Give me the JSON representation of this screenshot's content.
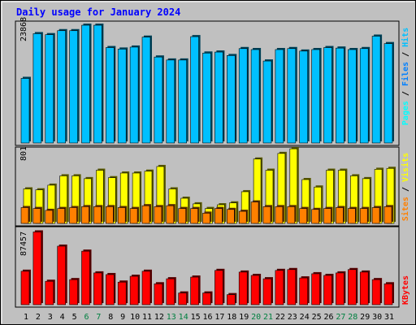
{
  "title": "Daily usage for January 2024",
  "colors": {
    "hits": "#00c0ff",
    "files": "#0080ff",
    "pages": "#00ffff",
    "sites": "#ff8000",
    "visits": "#ffff00",
    "kbytes": "#ff0000",
    "weekend_label": "#008040",
    "weekday_label": "#000000",
    "title": "#0000ff",
    "panel_bg": "#c0c0c0"
  },
  "chart_data": {
    "type": "bar",
    "title": "Daily usage for January 2024",
    "x": [
      "1",
      "2",
      "3",
      "4",
      "5",
      "6",
      "7",
      "8",
      "9",
      "10",
      "11",
      "12",
      "13",
      "14",
      "15",
      "16",
      "17",
      "18",
      "19",
      "20",
      "21",
      "22",
      "23",
      "24",
      "25",
      "26",
      "27",
      "28",
      "29",
      "30",
      "31"
    ],
    "weekend_days": [
      "6",
      "7",
      "13",
      "14",
      "20",
      "21",
      "27",
      "28"
    ],
    "panels": [
      {
        "name": "top",
        "ymax_label": "23868",
        "ymax": 23868,
        "legend": [
          {
            "text": "Pages",
            "color": "#00ffff"
          },
          {
            "text": " / ",
            "color": "#000000"
          },
          {
            "text": "Files",
            "color": "#0080ff"
          },
          {
            "text": " / ",
            "color": "#000000"
          },
          {
            "text": "Hits",
            "color": "#00c0ff"
          }
        ],
        "series": [
          {
            "name": "Hits",
            "color": "#00c0ff",
            "values": [
              13000,
              22000,
              21800,
              22600,
              22600,
              23700,
              23700,
              19200,
              18900,
              19300,
              21300,
              17300,
              16700,
              16700,
              21400,
              18100,
              18300,
              17600,
              19000,
              18800,
              16500,
              18800,
              19000,
              18500,
              18800,
              19200,
              19100,
              18800,
              19000,
              21500,
              20000
            ]
          }
        ]
      },
      {
        "name": "middle",
        "ymax_label": "801",
        "ymax": 801,
        "legend": [
          {
            "text": "Sites",
            "color": "#ff8000"
          },
          {
            "text": " / ",
            "color": "#000000"
          },
          {
            "text": "Visits",
            "color": "#ffff00"
          }
        ],
        "series": [
          {
            "name": "Visits",
            "color": "#ffff00",
            "values": [
              370,
              360,
              410,
              510,
              510,
              480,
              570,
              490,
              540,
              540,
              560,
              610,
              370,
              270,
              210,
              160,
              200,
              220,
              340,
              690,
              570,
              750,
              800,
              470,
              390,
              570,
              570,
              510,
              480,
              580,
              590
            ]
          },
          {
            "name": "Sites",
            "color": "#ff8000",
            "values": [
              170,
              160,
              140,
              160,
              170,
              180,
              180,
              180,
              170,
              160,
              190,
              180,
              190,
              160,
              160,
              110,
              160,
              150,
              130,
              230,
              180,
              180,
              180,
              160,
              150,
              160,
              170,
              160,
              160,
              170,
              180
            ]
          }
        ]
      },
      {
        "name": "bottom",
        "ymax_label": "87457",
        "ymax": 87457,
        "legend": [
          {
            "text": "KBytes",
            "color": "#ff0000"
          }
        ],
        "series": [
          {
            "name": "KBytes",
            "color": "#ff0000",
            "values": [
              40000,
              87000,
              28000,
              70000,
              30000,
              64000,
              38000,
              36000,
              27000,
              34000,
              40000,
              25000,
              31000,
              14000,
              33000,
              14000,
              41000,
              12000,
              39000,
              35000,
              31000,
              41000,
              42000,
              32000,
              37000,
              35000,
              38000,
              42000,
              39000,
              30000,
              25000
            ]
          }
        ]
      }
    ]
  }
}
